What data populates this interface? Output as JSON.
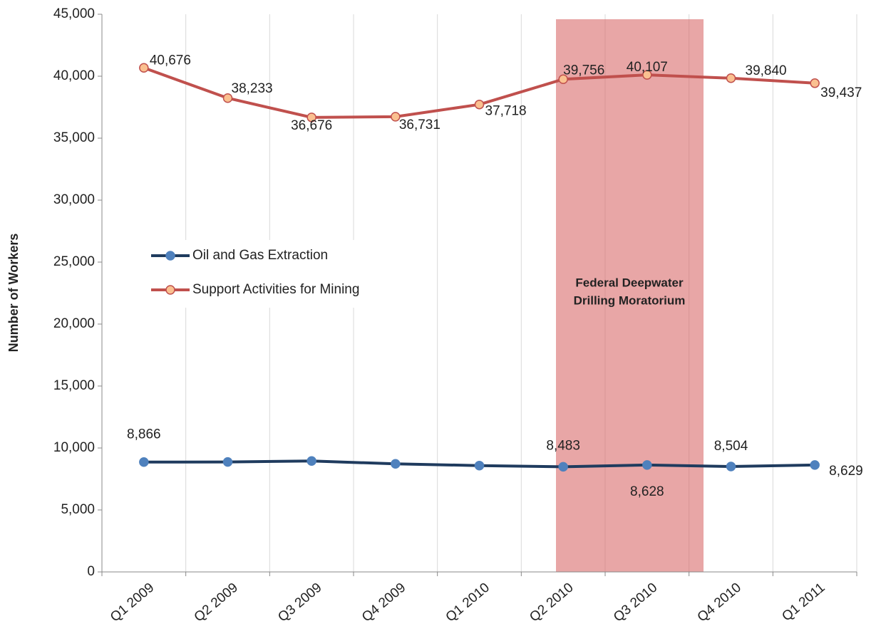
{
  "chart_data": {
    "type": "line",
    "y_label": "Number of Workers",
    "categories": [
      "Q1 2009",
      "Q2 2009",
      "Q3 2009",
      "Q4 2009",
      "Q1 2010",
      "Q2 2010",
      "Q3 2010",
      "Q4 2010",
      "Q1 2011"
    ],
    "series": [
      {
        "name": "Oil and Gas Extraction",
        "color": "#1f3b5e",
        "marker_color": "#4f81bd",
        "values": [
          8866,
          8870,
          8950,
          8720,
          8580,
          8483,
          8628,
          8504,
          8629
        ],
        "value_labels": [
          "8,866",
          null,
          null,
          null,
          null,
          "8,483",
          "8,628",
          "8,504",
          "8,629"
        ]
      },
      {
        "name": "Support Activities for Mining",
        "color": "#c0504d",
        "marker_color": "#fac090",
        "values": [
          40676,
          38233,
          36676,
          36731,
          37718,
          39756,
          40107,
          39840,
          39437
        ],
        "value_labels": [
          "40,676",
          "38,233",
          "36,676",
          "36,731",
          "37,718",
          "39,756",
          "40,107",
          "39,840",
          "39,437"
        ]
      }
    ],
    "annotations": [
      {
        "text": [
          "Federal Deepwater",
          "Drilling Moratorium"
        ]
      }
    ],
    "ylim": [
      0,
      45000
    ],
    "yticks": [
      0,
      {
        "value": 5000,
        "label": "5,000"
      },
      {
        "value": 10000,
        "label": "10,000"
      },
      {
        "value": 15000,
        "label": "15,000"
      },
      {
        "value": 20000,
        "label": "20,000"
      },
      {
        "value": 25000,
        "label": "25,000"
      },
      {
        "value": 30000,
        "label": "30,000"
      },
      {
        "value": 35000,
        "label": "35,000"
      },
      {
        "value": 40000,
        "label": "40,000"
      },
      {
        "value": 45000,
        "label": "45,000"
      }
    ],
    "grid": "x"
  }
}
